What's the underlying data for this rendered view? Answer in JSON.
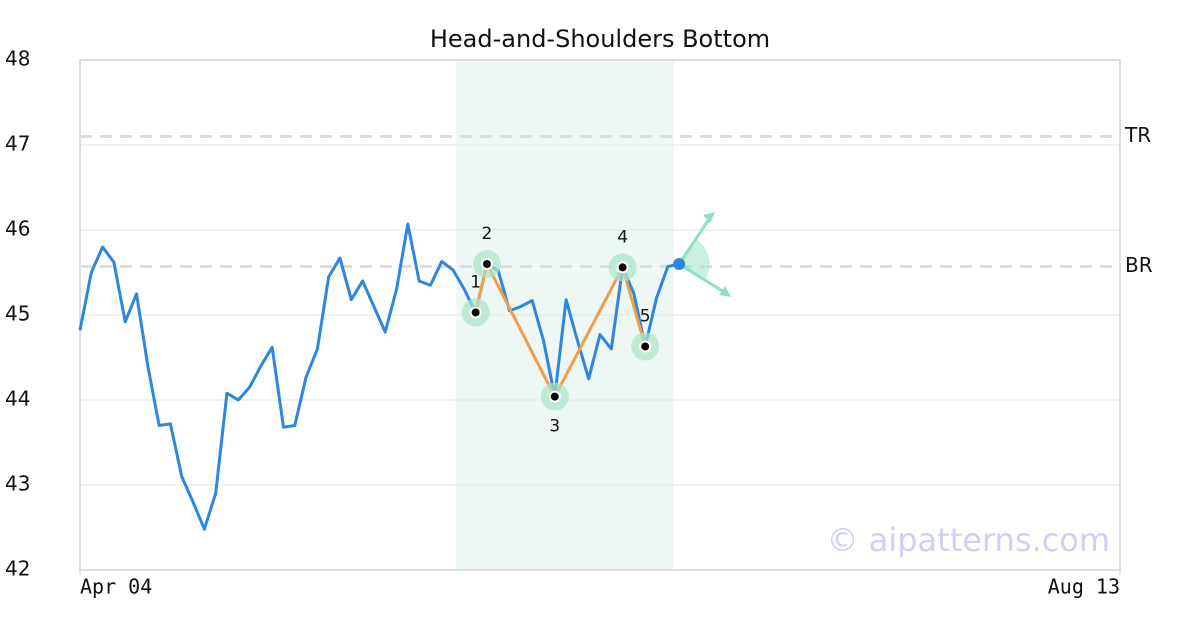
{
  "chart_data": {
    "type": "line",
    "title": "Head-and-Shoulders Bottom",
    "xlim": [
      0,
      92
    ],
    "xticks": [
      {
        "value": 0,
        "label": "Apr 04"
      },
      {
        "value": 92,
        "label": "Aug 13"
      }
    ],
    "ylim": [
      42,
      48
    ],
    "yticks": [
      42,
      43,
      44,
      45,
      46,
      47,
      48
    ],
    "grid": true,
    "series": [
      {
        "color": "#2e86de",
        "x": [
          0,
          1,
          2,
          3,
          4,
          5,
          6,
          7,
          8,
          9,
          10,
          11,
          12,
          13,
          14,
          15,
          16,
          17,
          18,
          19,
          20,
          21,
          22,
          23,
          24,
          25,
          26,
          27,
          28,
          29,
          30,
          31,
          32,
          33,
          34,
          35,
          36,
          37,
          38,
          39,
          40,
          41,
          42,
          43,
          44,
          45,
          46,
          47,
          48,
          49,
          50,
          51,
          52,
          53
        ],
        "values": [
          44.82,
          45.5,
          45.8,
          45.62,
          44.92,
          45.25,
          44.4,
          43.7,
          43.72,
          43.1,
          42.8,
          42.48,
          42.9,
          44.08,
          44,
          44.15,
          44.4,
          44.62,
          43.68,
          43.7,
          44.27,
          44.6,
          45.45,
          45.67,
          45.18,
          45.4,
          45.1,
          44.8,
          45.3,
          46.07,
          45.4,
          45.35,
          45.63,
          45.53,
          45.3,
          45.03,
          45.6,
          45.52,
          45.05,
          45.1,
          45.17,
          44.7,
          44.04,
          45.18,
          44.7,
          44.25,
          44.77,
          44.6,
          45.56,
          45.25,
          44.63,
          45.2,
          45.57,
          45.6
        ]
      }
    ],
    "pattern": {
      "color": "#f39c4a",
      "labels": [
        "1",
        "2",
        "3",
        "4",
        "5"
      ],
      "x": [
        35,
        36,
        42,
        48,
        50
      ],
      "values": [
        45.03,
        45.6,
        44.04,
        45.56,
        44.63
      ]
    },
    "highlight_range": [
      33.3,
      52.5
    ],
    "breakout": {
      "x": 53,
      "value": 45.6,
      "color": "#2e86de"
    },
    "levels": [
      {
        "name": "TR",
        "value": 47.1
      },
      {
        "name": "BR",
        "value": 45.57
      }
    ],
    "watermark": "© aipatterns.com"
  }
}
